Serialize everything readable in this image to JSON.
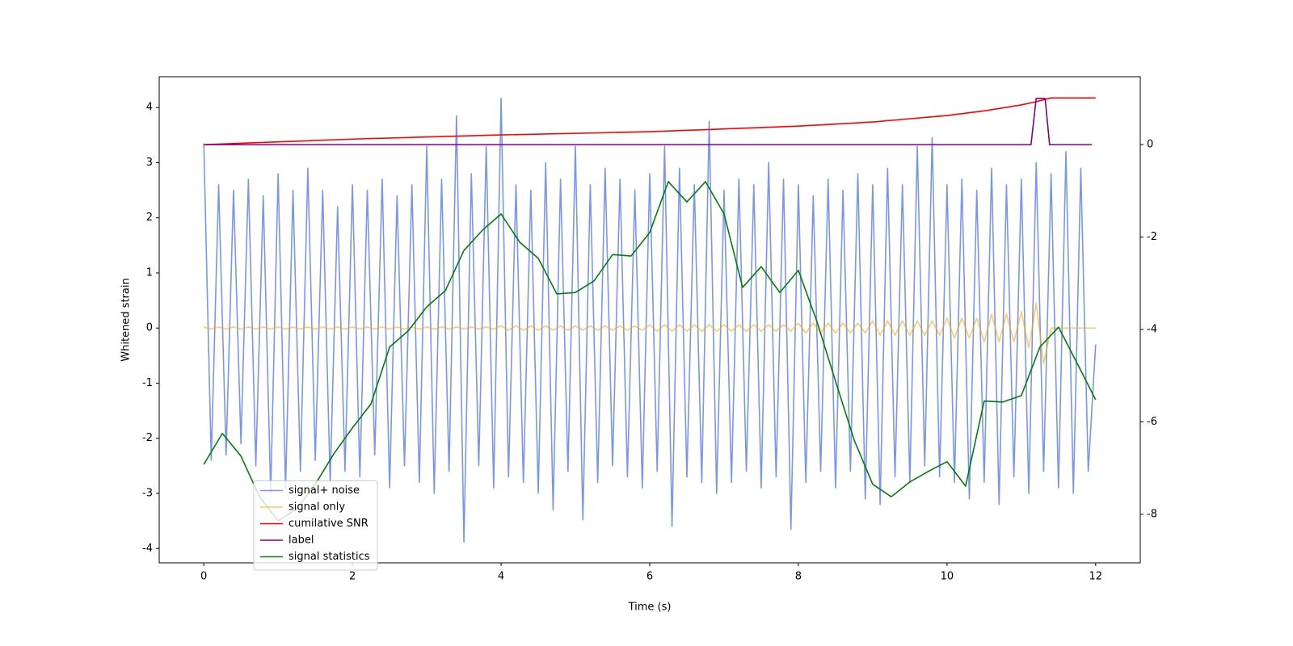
{
  "chart_data": {
    "type": "line",
    "xlabel": "Time (s)",
    "ylabel": "Whitened strain",
    "legend": "lower left",
    "xlim": [
      -0.6,
      12.6
    ],
    "ylim": [
      -4.26,
      4.56
    ],
    "y2lim": [
      -9.05,
      1.47
    ],
    "xticks": [
      0,
      2,
      4,
      6,
      8,
      10,
      12
    ],
    "yticks": [
      -4,
      -3,
      -2,
      -1,
      0,
      1,
      2,
      3,
      4
    ],
    "y2ticks": [
      -8,
      -6,
      -4,
      -2,
      0
    ],
    "x": [
      0,
      0.1,
      0.2,
      0.3,
      0.4,
      0.5,
      0.6,
      0.7,
      0.8,
      0.9,
      1,
      1.1,
      1.2,
      1.3,
      1.4,
      1.5,
      1.6,
      1.7,
      1.8,
      1.9,
      2,
      2.1,
      2.2,
      2.3,
      2.4,
      2.5,
      2.6,
      2.7,
      2.8,
      2.9,
      3,
      3.1,
      3.2,
      3.3,
      3.4,
      3.5,
      3.6,
      3.7,
      3.8,
      3.9,
      4,
      4.1,
      4.2,
      4.3,
      4.4,
      4.5,
      4.6,
      4.7,
      4.8,
      4.9,
      5,
      5.1,
      5.2,
      5.3,
      5.4,
      5.5,
      5.6,
      5.7,
      5.8,
      5.9,
      6,
      6.1,
      6.2,
      6.3,
      6.4,
      6.5,
      6.6,
      6.7,
      6.8,
      6.9,
      7,
      7.1,
      7.2,
      7.3,
      7.4,
      7.5,
      7.6,
      7.7,
      7.8,
      7.9,
      8,
      8.1,
      8.2,
      8.3,
      8.4,
      8.5,
      8.6,
      8.7,
      8.8,
      8.9,
      9,
      9.1,
      9.2,
      9.3,
      9.4,
      9.5,
      9.6,
      9.7,
      9.8,
      9.9,
      10,
      10.1,
      10.2,
      10.3,
      10.4,
      10.5,
      10.6,
      10.7,
      10.8,
      10.9,
      11,
      11.1,
      11.2,
      11.3,
      11.4,
      11.5,
      11.6,
      11.7,
      11.8,
      11.9,
      12
    ],
    "series": [
      {
        "name": "signal+ noise",
        "color": "#4169e1",
        "opacity": 0.7,
        "values": [
          3.35,
          -2.4,
          2.6,
          -2.3,
          2.5,
          -2.1,
          2.7,
          -2.5,
          2.4,
          -3.0,
          2.8,
          -2.9,
          2.5,
          -2.6,
          2.9,
          -2.4,
          2.5,
          -2.8,
          2.2,
          -2.6,
          2.6,
          -2.7,
          2.5,
          -2.3,
          2.7,
          -2.9,
          2.4,
          -2.5,
          2.6,
          -2.8,
          3.3,
          -3.0,
          2.7,
          -2.6,
          3.85,
          -3.88,
          2.8,
          -2.5,
          3.3,
          -2.9,
          4.17,
          -2.7,
          2.6,
          -2.8,
          2.5,
          -3.0,
          3.0,
          -3.3,
          2.7,
          -2.6,
          3.3,
          -3.48,
          2.6,
          -2.8,
          2.9,
          -2.5,
          2.7,
          -2.7,
          2.5,
          -2.9,
          2.8,
          -2.6,
          3.3,
          -3.6,
          2.9,
          -2.7,
          2.6,
          -2.8,
          3.75,
          -3.0,
          2.5,
          -2.8,
          2.7,
          -2.6,
          2.6,
          -2.9,
          3.0,
          -2.7,
          2.7,
          -3.65,
          2.6,
          -2.8,
          2.4,
          -2.6,
          2.7,
          -2.9,
          2.5,
          -2.6,
          2.8,
          -3.1,
          2.6,
          -3.2,
          2.9,
          -2.7,
          2.6,
          -2.8,
          3.3,
          -2.5,
          3.45,
          -2.7,
          2.6,
          -2.8,
          2.7,
          -3.1,
          2.5,
          -2.8,
          2.9,
          -3.2,
          2.6,
          -2.7,
          2.7,
          -3.0,
          3.0,
          -2.6,
          2.8,
          -2.9,
          3.2,
          -3.0,
          2.9,
          -2.6,
          -0.3
        ]
      },
      {
        "name": "signal only",
        "color": "#ffa500",
        "opacity": 0.6,
        "values": [
          0.02,
          -0.02,
          0.02,
          -0.02,
          0.02,
          -0.02,
          0.02,
          -0.02,
          0.02,
          -0.02,
          0.02,
          -0.02,
          0.02,
          -0.02,
          0.02,
          -0.02,
          0.02,
          -0.02,
          0.02,
          -0.02,
          0.02,
          -0.02,
          0.02,
          -0.02,
          0.02,
          -0.02,
          0.02,
          -0.02,
          0.02,
          -0.02,
          0.02,
          -0.02,
          0.02,
          -0.02,
          0.02,
          -0.02,
          0.02,
          -0.02,
          0.02,
          -0.02,
          0.04,
          -0.04,
          0.04,
          -0.04,
          0.04,
          -0.04,
          0.04,
          -0.04,
          0.04,
          -0.04,
          0.04,
          -0.04,
          0.04,
          -0.04,
          0.04,
          -0.04,
          0.04,
          -0.04,
          0.04,
          -0.04,
          0.06,
          -0.06,
          0.06,
          -0.06,
          0.06,
          -0.06,
          0.06,
          -0.06,
          0.06,
          -0.06,
          0.06,
          -0.06,
          0.06,
          -0.06,
          0.06,
          -0.06,
          0.06,
          -0.06,
          0.06,
          -0.06,
          0.09,
          -0.09,
          0.09,
          -0.09,
          0.09,
          -0.09,
          0.09,
          -0.09,
          0.09,
          -0.09,
          0.13,
          -0.13,
          0.13,
          -0.13,
          0.13,
          -0.13,
          0.13,
          -0.13,
          0.13,
          -0.13,
          0.18,
          -0.18,
          0.18,
          -0.18,
          0.18,
          -0.25,
          0.25,
          -0.25,
          0.25,
          -0.25,
          0.3,
          -0.36,
          0.45,
          -0.65,
          0,
          0,
          0,
          0,
          0,
          0,
          0
        ]
      },
      {
        "name": "cumilative SNR",
        "color": "#ff0000",
        "axis": "y2",
        "x": [
          0,
          2,
          4,
          6,
          8,
          9,
          10,
          10.5,
          11,
          11.2,
          11.4,
          12
        ],
        "values": [
          0,
          0.12,
          0.21,
          0.28,
          0.4,
          0.49,
          0.63,
          0.73,
          0.86,
          0.93,
          1.01,
          1.01
        ]
      },
      {
        "name": "label",
        "color": "#800080",
        "axis": "y2",
        "x": [
          0,
          11.13,
          11.2,
          11.32,
          11.38,
          11.95
        ],
        "values": [
          0,
          0,
          1,
          1,
          0,
          0
        ]
      },
      {
        "name": "signal statistics",
        "color": "#008000",
        "axis": "y2",
        "x": [
          0,
          0.25,
          0.5,
          0.75,
          1,
          1.25,
          1.5,
          1.75,
          2,
          2.25,
          2.5,
          2.75,
          3,
          3.25,
          3.5,
          3.75,
          4,
          4.25,
          4.5,
          4.75,
          5,
          5.25,
          5.5,
          5.75,
          6,
          6.25,
          6.5,
          6.75,
          7,
          7.25,
          7.5,
          7.75,
          8,
          8.25,
          8.5,
          8.75,
          9,
          9.25,
          9.5,
          9.75,
          10,
          10.25,
          10.5,
          10.75,
          11,
          11.25,
          11.5,
          11.75,
          12
        ],
        "values": [
          -6.92,
          -6.25,
          -6.74,
          -7.62,
          -8.14,
          -7.88,
          -7.35,
          -6.69,
          -6.13,
          -5.61,
          -4.38,
          -4.03,
          -3.51,
          -3.16,
          -2.29,
          -1.85,
          -1.5,
          -2.11,
          -2.46,
          -3.23,
          -3.2,
          -2.95,
          -2.38,
          -2.41,
          -1.9,
          -0.8,
          -1.24,
          -0.8,
          -1.5,
          -3.09,
          -2.64,
          -3.2,
          -2.72,
          -3.83,
          -5.12,
          -6.39,
          -7.35,
          -7.62,
          -7.3,
          -7.07,
          -6.86,
          -7.39,
          -5.55,
          -5.57,
          -5.43,
          -4.38,
          -3.95,
          -4.73,
          -5.52
        ]
      }
    ]
  }
}
